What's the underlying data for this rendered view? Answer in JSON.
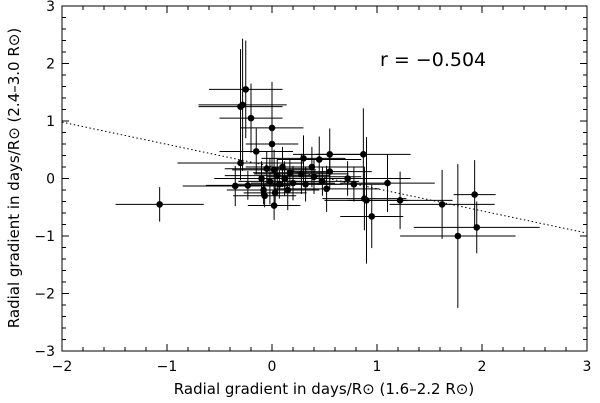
{
  "chart_data": {
    "type": "scatter",
    "title": "",
    "xlabel": "Radial gradient in days/R⊙ (1.6–2.2 R⊙)",
    "ylabel": "Radial gradient in days/R⊙ (2.4–3.0 R⊙)",
    "annotation": "r =  −0.504",
    "xlim": [
      -2,
      3
    ],
    "ylim": [
      -3,
      3
    ],
    "xticks": [
      -2,
      -1,
      0,
      1,
      2,
      3
    ],
    "yticks": [
      -3,
      -2,
      -1,
      0,
      1,
      2,
      3
    ],
    "xtick_labels": [
      "−2",
      "−1",
      "0",
      "1",
      "2",
      "3"
    ],
    "ytick_labels": [
      "−3",
      "−2",
      "−1",
      "0",
      "1",
      "2",
      "3"
    ],
    "grid": false,
    "legend": "none",
    "fit_line": {
      "style": "dotted",
      "x": [
        -2,
        3
      ],
      "y": [
        0.98,
        -0.95
      ]
    },
    "series": [
      {
        "points": [
          {
            "x": -1.07,
            "y": -0.45,
            "xerr": 0.42,
            "yerr": 0.3
          },
          {
            "x": -0.3,
            "y": 1.25,
            "xerr": 0.4,
            "yerr": 1.0
          },
          {
            "x": -0.28,
            "y": 1.28,
            "xerr": 0.42,
            "yerr": 1.15
          },
          {
            "x": -0.25,
            "y": 1.55,
            "xerr": 0.35,
            "yerr": 0.85
          },
          {
            "x": -0.2,
            "y": 1.05,
            "xerr": 0.3,
            "yerr": 0.6
          },
          {
            "x": -0.15,
            "y": 0.47,
            "xerr": 0.35,
            "yerr": 0.4
          },
          {
            "x": -0.3,
            "y": 0.27,
            "xerr": 0.6,
            "yerr": 0.3
          },
          {
            "x": -0.35,
            "y": -0.13,
            "xerr": 0.5,
            "yerr": 0.35
          },
          {
            "x": -0.23,
            "y": -0.12,
            "xerr": 0.4,
            "yerr": 0.25
          },
          {
            "x": -0.1,
            "y": 0.0,
            "xerr": 0.45,
            "yerr": 0.3
          },
          {
            "x": -0.08,
            "y": -0.2,
            "xerr": 0.35,
            "yerr": 0.25
          },
          {
            "x": -0.05,
            "y": 0.17,
            "xerr": 0.4,
            "yerr": 0.3
          },
          {
            "x": -0.02,
            "y": -0.05,
            "xerr": 0.3,
            "yerr": 0.4
          },
          {
            "x": 0.0,
            "y": 0.88,
            "xerr": 0.3,
            "yerr": 0.8
          },
          {
            "x": 0.0,
            "y": 0.6,
            "xerr": 0.25,
            "yerr": 0.4
          },
          {
            "x": 0.02,
            "y": 0.15,
            "xerr": 0.4,
            "yerr": 0.35
          },
          {
            "x": 0.03,
            "y": -0.25,
            "xerr": 0.3,
            "yerr": 0.25
          },
          {
            "x": 0.02,
            "y": -0.47,
            "xerr": 0.25,
            "yerr": 0.25
          },
          {
            "x": 0.05,
            "y": 0.05,
            "xerr": 0.5,
            "yerr": 0.3
          },
          {
            "x": 0.07,
            "y": -0.1,
            "xerr": 0.4,
            "yerr": 0.25
          },
          {
            "x": 0.1,
            "y": 0.2,
            "xerr": 0.35,
            "yerr": 0.35
          },
          {
            "x": 0.12,
            "y": 0.0,
            "xerr": 0.4,
            "yerr": 0.3
          },
          {
            "x": 0.15,
            "y": -0.2,
            "xerr": 0.3,
            "yerr": 0.35
          },
          {
            "x": 0.17,
            "y": 0.1,
            "xerr": 0.35,
            "yerr": 0.25
          },
          {
            "x": 0.2,
            "y": -0.08,
            "xerr": 0.4,
            "yerr": 0.3
          },
          {
            "x": -0.07,
            "y": -0.3,
            "xerr": 0.3,
            "yerr": 0.2
          },
          {
            "x": 0.28,
            "y": 0.08,
            "xerr": 0.45,
            "yerr": 0.35
          },
          {
            "x": 0.3,
            "y": 0.35,
            "xerr": 0.4,
            "yerr": 0.4
          },
          {
            "x": 0.32,
            "y": -0.1,
            "xerr": 0.35,
            "yerr": 0.3
          },
          {
            "x": 0.38,
            "y": 0.2,
            "xerr": 0.5,
            "yerr": 0.35
          },
          {
            "x": 0.4,
            "y": 0.03,
            "xerr": 0.45,
            "yerr": 0.3
          },
          {
            "x": 0.45,
            "y": 0.33,
            "xerr": 0.4,
            "yerr": 0.4
          },
          {
            "x": 0.48,
            "y": -0.05,
            "xerr": 0.35,
            "yerr": 0.25
          },
          {
            "x": 0.52,
            "y": -0.18,
            "xerr": 0.5,
            "yerr": 0.4
          },
          {
            "x": 0.55,
            "y": 0.12,
            "xerr": 0.4,
            "yerr": 0.3
          },
          {
            "x": 0.55,
            "y": 0.42,
            "xerr": 0.35,
            "yerr": 0.45
          },
          {
            "x": 0.72,
            "y": 0.0,
            "xerr": 0.6,
            "yerr": 0.3
          },
          {
            "x": 0.78,
            "y": -0.1,
            "xerr": 0.35,
            "yerr": 0.3
          },
          {
            "x": 0.87,
            "y": 0.42,
            "xerr": 0.45,
            "yerr": 0.8
          },
          {
            "x": 0.88,
            "y": -0.35,
            "xerr": 0.4,
            "yerr": 0.55
          },
          {
            "x": 0.9,
            "y": -0.38,
            "xerr": 0.4,
            "yerr": 1.1
          },
          {
            "x": 0.95,
            "y": -0.66,
            "xerr": 0.3,
            "yerr": 0.55
          },
          {
            "x": 1.1,
            "y": -0.08,
            "xerr": 0.45,
            "yerr": 0.5
          },
          {
            "x": 1.22,
            "y": -0.38,
            "xerr": 0.5,
            "yerr": 0.5
          },
          {
            "x": 1.62,
            "y": -0.45,
            "xerr": 0.5,
            "yerr": 0.6
          },
          {
            "x": 1.77,
            "y": -1.0,
            "xerr": 0.55,
            "yerr": 1.25
          },
          {
            "x": 1.93,
            "y": -0.28,
            "xerr": 0.2,
            "yerr": 0.6
          },
          {
            "x": 1.95,
            "y": -0.85,
            "xerr": 0.6,
            "yerr": 0.45
          }
        ]
      }
    ]
  }
}
